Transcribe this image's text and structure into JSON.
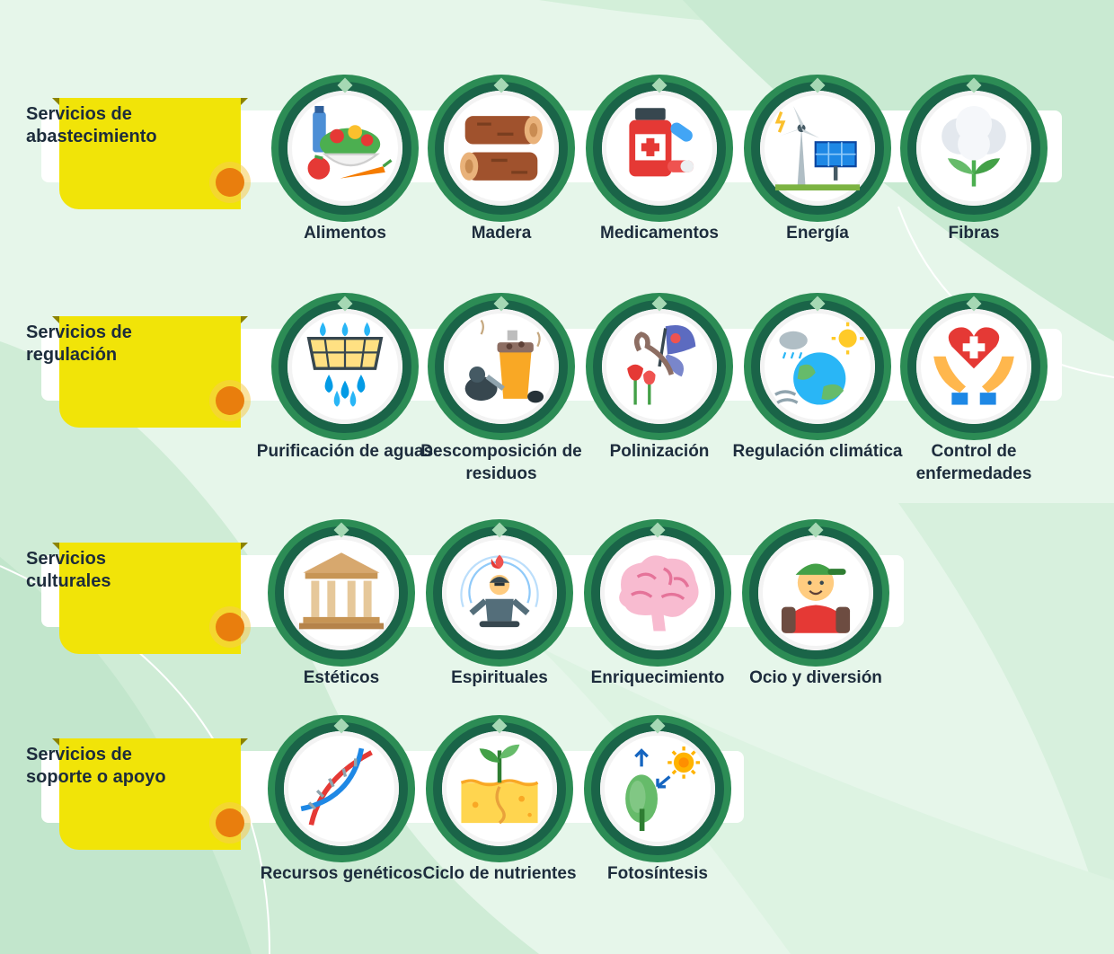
{
  "rows": [
    {
      "title": "Servicios de abastecimiento",
      "items": [
        {
          "label": "Alimentos",
          "icon": "food-icon"
        },
        {
          "label": "Madera",
          "icon": "wood-logs-icon"
        },
        {
          "label": "Medicamentos",
          "icon": "medicine-icon"
        },
        {
          "label": "Energía",
          "icon": "wind-solar-energy-icon"
        },
        {
          "label": "Fibras",
          "icon": "cotton-fiber-icon"
        }
      ]
    },
    {
      "title": "Servicios de regulación",
      "items": [
        {
          "label": "Purificación de aguas",
          "icon": "water-filter-icon"
        },
        {
          "label": "Descomposición de residuos",
          "icon": "waste-decomposition-icon"
        },
        {
          "label": "Polinización",
          "icon": "butterfly-flowers-icon"
        },
        {
          "label": "Regulación climática",
          "icon": "climate-earth-icon"
        },
        {
          "label": "Control de enfermedades",
          "icon": "heart-hands-icon"
        }
      ]
    },
    {
      "title": "Servicios culturales",
      "items": [
        {
          "label": "Estéticos",
          "icon": "classical-building-icon"
        },
        {
          "label": "Espirituales",
          "icon": "meditation-icon"
        },
        {
          "label": "Enriquecimiento",
          "icon": "brain-icon"
        },
        {
          "label": "Ocio y diversión",
          "icon": "hiker-icon"
        }
      ]
    },
    {
      "title": "Servicios de soporte o apoyo",
      "items": [
        {
          "label": "Recursos genéticos",
          "icon": "dna-icon"
        },
        {
          "label": "Ciclo de nutrientes",
          "icon": "sprout-soil-icon"
        },
        {
          "label": "Fotosíntesis",
          "icon": "tree-sun-icon"
        }
      ]
    }
  ],
  "colors": {
    "background": "#e6f6ea",
    "tag": "#f1e408",
    "ring": "#2c8c55",
    "ring_dark": "#1a6448",
    "dot": "#e97e0d",
    "text": "#1d2c3c"
  }
}
